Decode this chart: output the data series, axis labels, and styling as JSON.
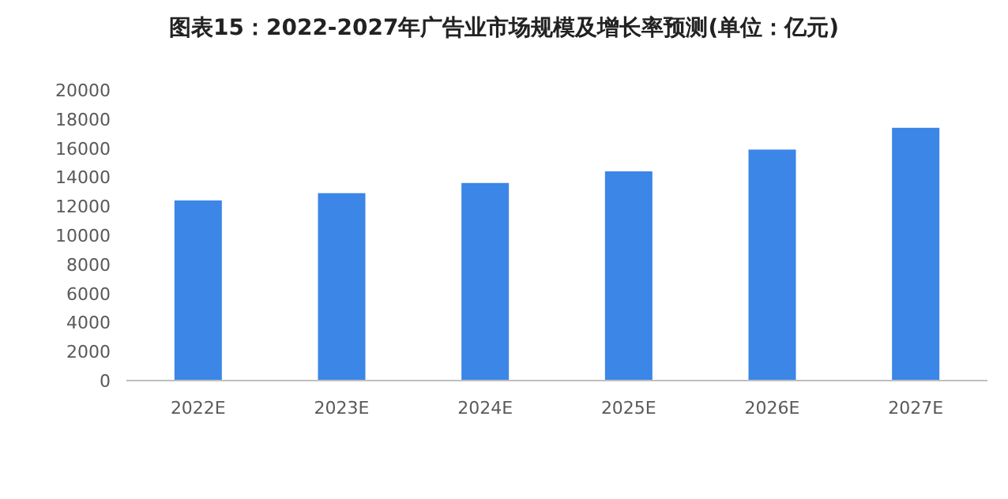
{
  "chart_data": {
    "type": "bar",
    "title": "图表15：2022-2027年广告业市场规模及增长率预测(单位：亿元)",
    "categories": [
      "2022E",
      "2023E",
      "2024E",
      "2025E",
      "2026E",
      "2027E"
    ],
    "values": [
      12400,
      12900,
      13600,
      14400,
      15900,
      17400
    ],
    "color": "#3b86e6",
    "ylim": [
      0,
      20000
    ],
    "yticks": [
      0,
      2000,
      4000,
      6000,
      8000,
      10000,
      12000,
      14000,
      16000,
      18000,
      20000
    ]
  }
}
